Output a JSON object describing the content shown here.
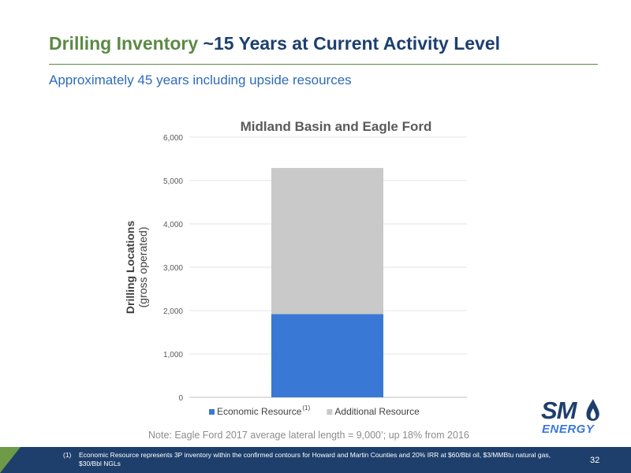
{
  "header": {
    "title_part1": "Drilling Inventory",
    "title_part2": "~15 Years at Current Activity Level",
    "subtitle": "Approximately 45 years including upside resources"
  },
  "chart_data": {
    "type": "bar",
    "stacked": true,
    "title": "Midland Basin and Eagle Ford",
    "ylabel_line1": "Drilling Locations",
    "ylabel_line2": "(gross operated)",
    "xlabel": "",
    "ylim": [
      0,
      6000
    ],
    "yticks": [
      0,
      1000,
      2000,
      3000,
      4000,
      5000,
      6000
    ],
    "ytick_labels": [
      "0",
      "1,000",
      "2,000",
      "3,000",
      "4,000",
      "5,000",
      "6,000"
    ],
    "grid": true,
    "legend_position": "bottom",
    "categories": [
      ""
    ],
    "series": [
      {
        "name": "Economic Resource",
        "legend_superscript": "(1)",
        "values": [
          1920
        ],
        "color": "#3a78d6"
      },
      {
        "name": "Additional Resource",
        "values": [
          3370
        ],
        "color": "#c9c9c9"
      }
    ]
  },
  "note": "Note: Eagle Ford 2017 average lateral length = 9,000’; up 18% from 2016",
  "logo": {
    "line1": "SM",
    "line2": "ENERGY"
  },
  "footer": {
    "footnote_number": "(1)",
    "footnote_text": "Economic Resource represents 3P inventory within the confirmed contours for Howard and Martin Counties and 20% IRR at $60/Bbl oil, $3/MMBtu natural gas, $30/Bbl NGLs",
    "page_number": "32"
  },
  "colors": {
    "green": "#5b8a44",
    "navy": "#1e3f6c",
    "blue": "#2e6bb8"
  }
}
